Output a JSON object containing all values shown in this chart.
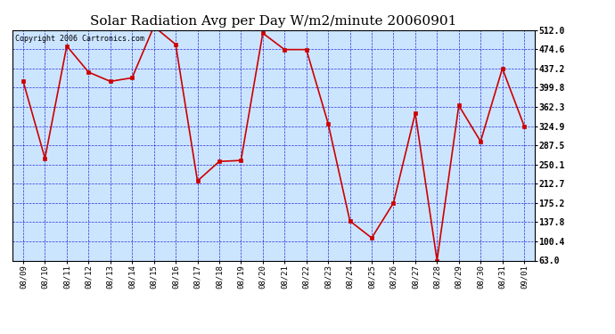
{
  "title": "Solar Radiation Avg per Day W/m2/minute 20060901",
  "copyright": "Copyright 2006 Cartronics.com",
  "dates": [
    "08/09",
    "08/10",
    "08/11",
    "08/12",
    "08/13",
    "08/14",
    "08/15",
    "08/16",
    "08/17",
    "08/18",
    "08/19",
    "08/20",
    "08/21",
    "08/22",
    "08/23",
    "08/24",
    "08/25",
    "08/26",
    "08/27",
    "08/28",
    "08/29",
    "08/30",
    "08/31",
    "09/01"
  ],
  "values": [
    412.0,
    262.0,
    481.0,
    430.0,
    412.0,
    419.0,
    519.0,
    484.0,
    218.0,
    256.0,
    258.0,
    506.0,
    474.0,
    474.0,
    330.0,
    140.0,
    107.0,
    175.2,
    350.0,
    63.0,
    365.0,
    295.0,
    437.2,
    325.0
  ],
  "line_color": "#cc0000",
  "marker_color": "#cc0000",
  "bg_color": "#cce5ff",
  "grid_color": "#0000cc",
  "title_fontsize": 11,
  "tick_fontsize": 7,
  "ylim": [
    63.0,
    512.0
  ],
  "yticks": [
    63.0,
    100.4,
    137.8,
    175.2,
    212.7,
    250.1,
    287.5,
    324.9,
    362.3,
    399.8,
    437.2,
    474.6,
    512.0
  ]
}
